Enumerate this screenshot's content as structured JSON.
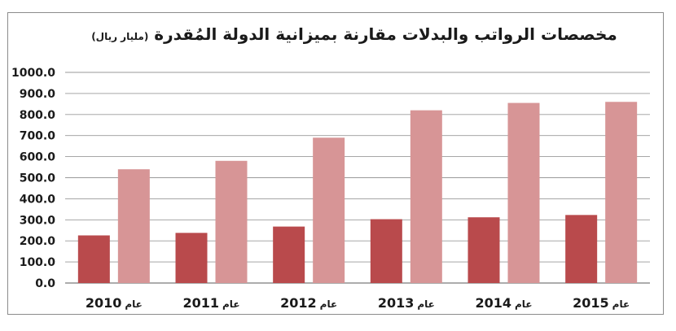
{
  "title": {
    "main": "مخصصات الرواتب والبدلات مقارنة بميزانية الدولة المُقدرة",
    "unit": "(مليار ريال)"
  },
  "colors": {
    "series_1": "#b94a4c",
    "series_2": "#d79596",
    "grid": "#9a9a9a",
    "frame": "#8c8c8c"
  },
  "chart_data": {
    "type": "bar",
    "title": "مخصصات الرواتب والبدلات مقارنة بميزانية الدولة المُقدرة (مليار ريال)",
    "categories": [
      "عام 2010",
      "عام 2011",
      "عام 2012",
      "عام 2013",
      "عام 2014",
      "عام 2015"
    ],
    "category_years": [
      "2010",
      "2011",
      "2012",
      "2013",
      "2014",
      "2015"
    ],
    "category_prefix": "عام",
    "series": [
      {
        "values": [
          226,
          238,
          268,
          303,
          312,
          323
        ]
      },
      {
        "values": [
          540,
          580,
          690,
          820,
          855,
          860
        ]
      }
    ],
    "yticks": [
      "0.0",
      "100.0",
      "200.0",
      "300.0",
      "400.0",
      "500.0",
      "600.0",
      "700.0",
      "800.0",
      "900.0",
      "1000.0"
    ],
    "ylim": [
      0,
      1000
    ],
    "xlabel": "",
    "ylabel": "",
    "grid": true,
    "legend": "none"
  }
}
